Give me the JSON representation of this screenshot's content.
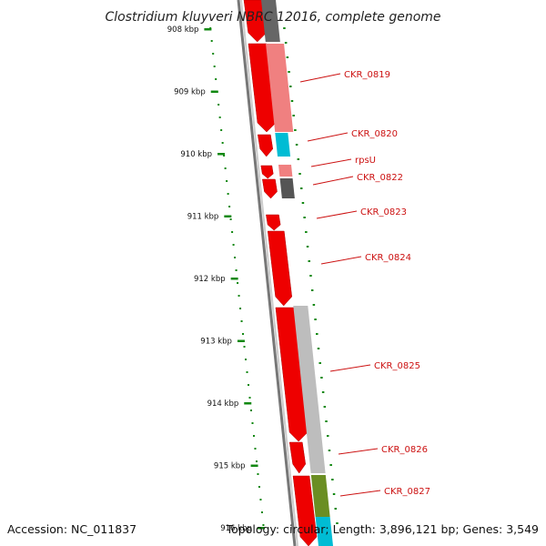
{
  "title": "Clostridium kluyveri NBRC 12016, complete genome",
  "accession": "Accession: NC_011837",
  "summary": "Topology: circular; Length: 3,896,121 bp; Genes: 3,549",
  "kbp_labels": [
    "908 kbp",
    "909 kbp",
    "910 kbp",
    "911 kbp",
    "912 kbp",
    "913 kbp",
    "914 kbp",
    "915 kbp",
    "916 kbp"
  ],
  "genes": [
    {
      "label": "CKR_0819"
    },
    {
      "label": "CKR_0820"
    },
    {
      "label": "rpsU"
    },
    {
      "label": "CKR_0822"
    },
    {
      "label": "CKR_0823"
    },
    {
      "label": "CKR_0824"
    },
    {
      "label": "CKR_0825"
    },
    {
      "label": "CKR_0826"
    },
    {
      "label": "CKR_0827"
    }
  ],
  "colors": {
    "cds": "#ee0000",
    "tick": "#118811",
    "label": "#cc1111",
    "backbone": "#777777"
  }
}
